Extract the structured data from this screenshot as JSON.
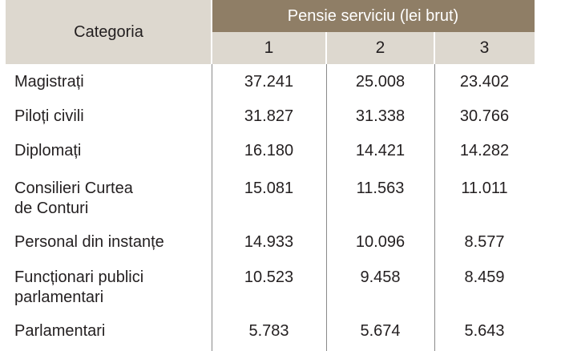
{
  "header": {
    "category_label": "Categoria",
    "group_label": "Pensie serviciu (lei brut)",
    "columns": [
      "1",
      "2",
      "3"
    ]
  },
  "rows": [
    {
      "category": "Magistrați",
      "values": [
        "37.241",
        "25.008",
        "23.402"
      ]
    },
    {
      "category": "Piloți civili",
      "values": [
        "31.827",
        "31.338",
        "30.766"
      ]
    },
    {
      "category": "Diplomați",
      "values": [
        "16.180",
        "14.421",
        "14.282"
      ]
    },
    {
      "category": "Consilieri Curtea\nde Conturi",
      "values": [
        "15.081",
        "11.563",
        "11.011"
      ]
    },
    {
      "category": "Personal din instanțe",
      "values": [
        "14.933",
        "10.096",
        "8.577"
      ]
    },
    {
      "category": "Funcționari publici\nparlamentari",
      "values": [
        "10.523",
        "9.458",
        "8.459"
      ]
    },
    {
      "category": "Parlamentari",
      "values": [
        "5.783",
        "5.674",
        "5.643"
      ]
    }
  ],
  "colors": {
    "header_dark": "#8f7e66",
    "header_light": "#ddd8cf",
    "divider": "#8a8a8a"
  }
}
